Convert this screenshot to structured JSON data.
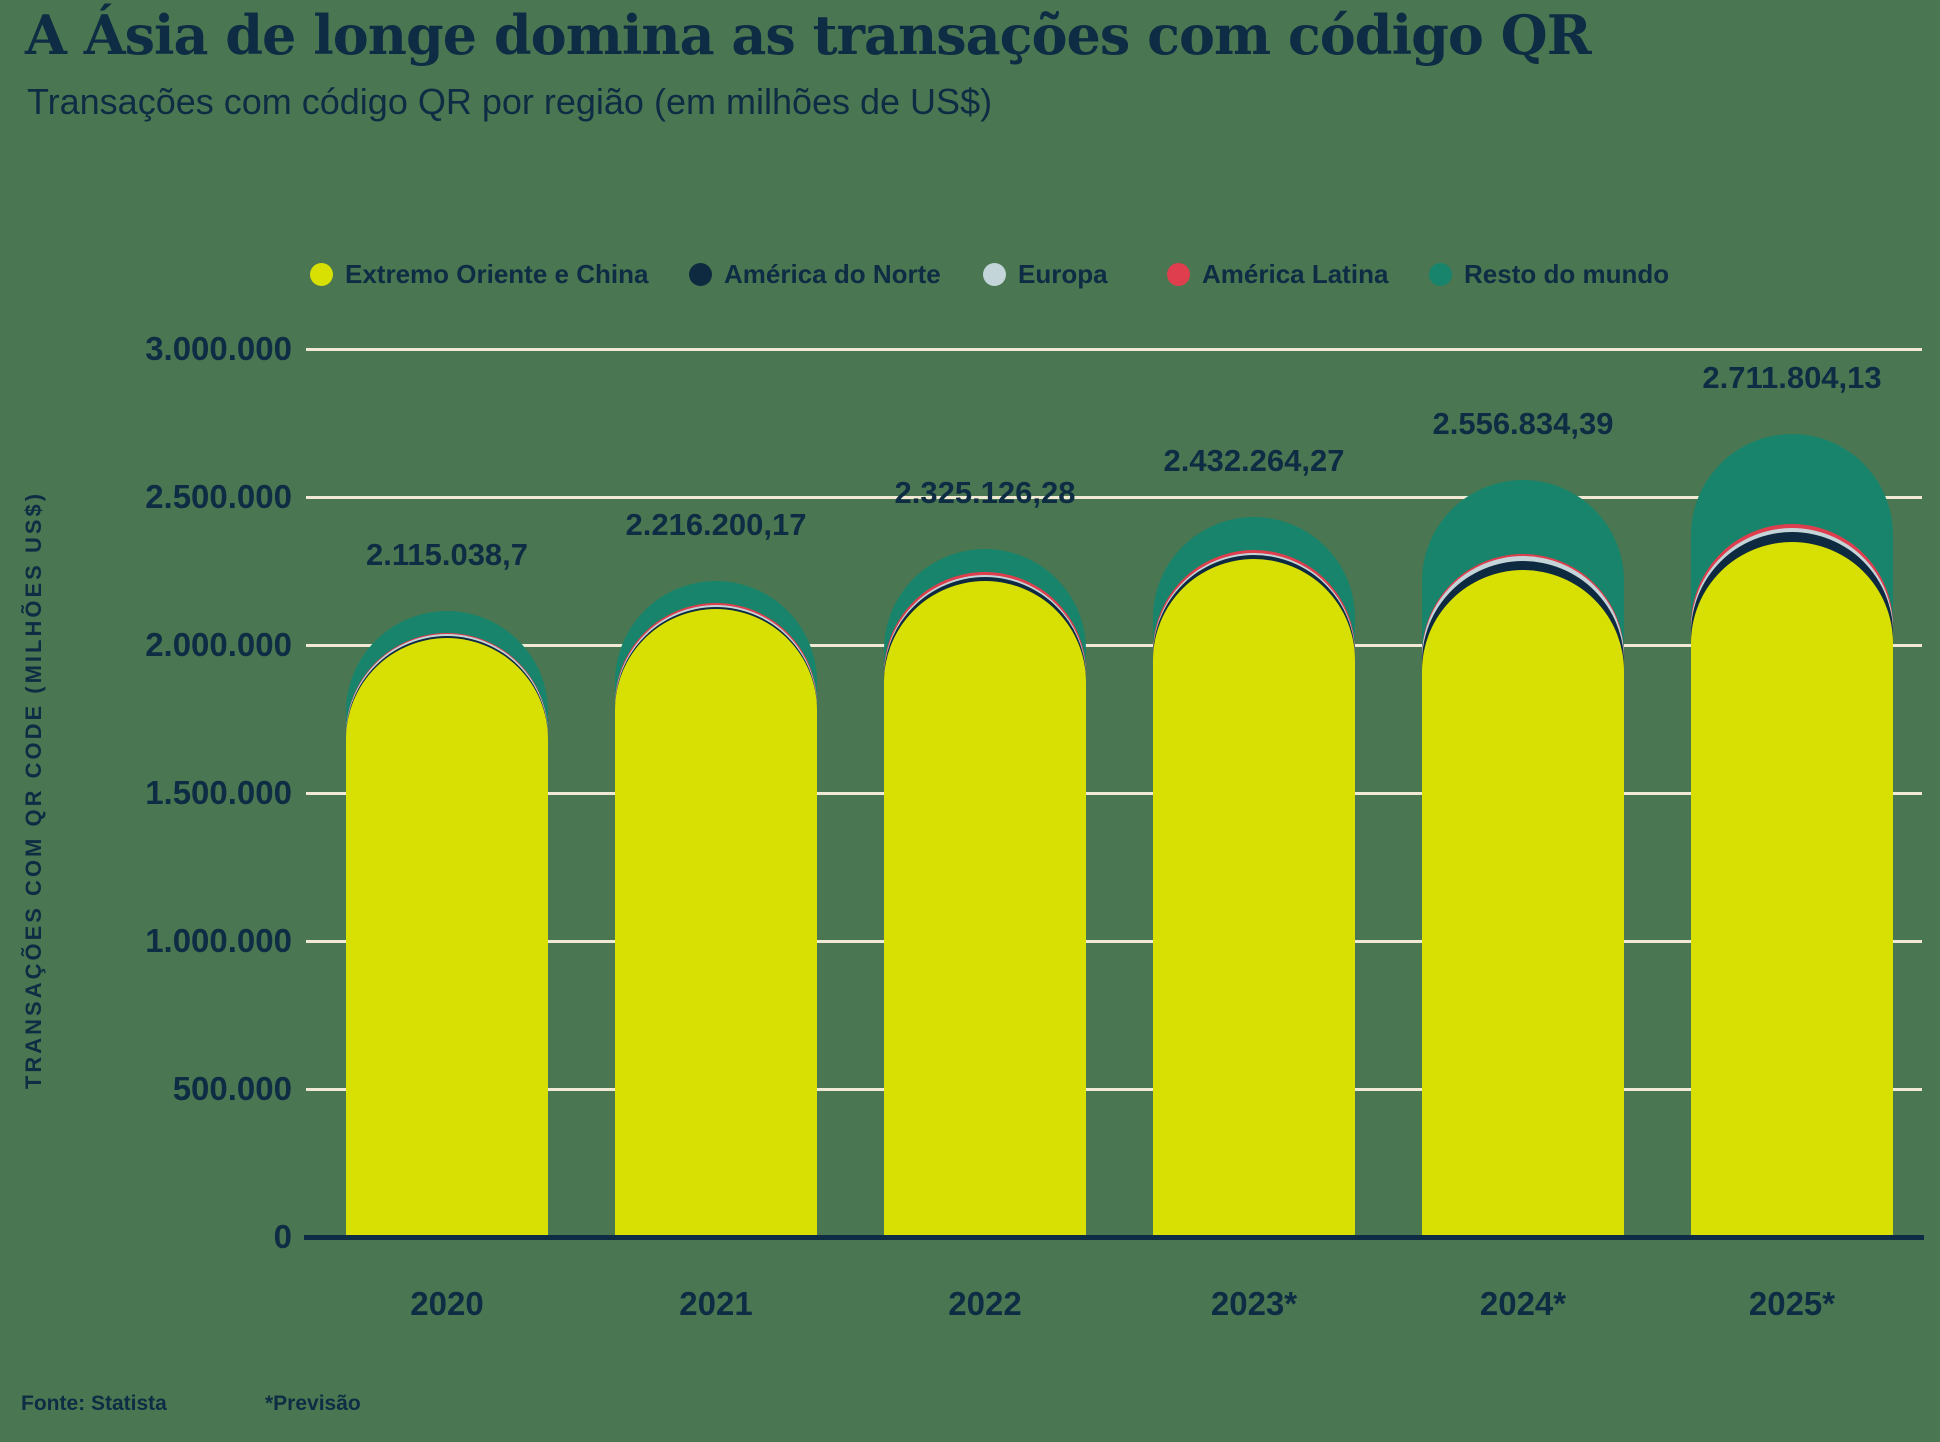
{
  "header": {
    "title": "A Ásia de longe domina as transações com código QR",
    "subtitle": "Transações com código QR por região (em milhões de US$)"
  },
  "colors": {
    "background": "#4A7751",
    "text": "#0E2C44",
    "gridline": "#F0EAD5",
    "axis": "#0E2C44",
    "far_east_china": "#D8E003",
    "north_america": "#0E2A40",
    "europe": "#C3D5D8",
    "latin_america": "#DE3E4E",
    "rest_of_world": "#17846B"
  },
  "legend": [
    {
      "label": "Extremo Oriente e China",
      "color": "#D8E003"
    },
    {
      "label": "América do Norte",
      "color": "#0E2A40"
    },
    {
      "label": "Europa",
      "color": "#C3D5D8"
    },
    {
      "label": "América Latina",
      "color": "#DE3E4E"
    },
    {
      "label": "Resto do mundo",
      "color": "#17846B"
    }
  ],
  "y_axis": {
    "title": "TRANSAÇÕES COM QR CODE (MILHÕES US$)",
    "ticks": [
      {
        "label": "3.000.000",
        "value": 3000000
      },
      {
        "label": "2.500.000",
        "value": 2500000
      },
      {
        "label": "2.000.000",
        "value": 2000000
      },
      {
        "label": "1.500.000",
        "value": 1500000
      },
      {
        "label": "1.000.000",
        "value": 1000000
      },
      {
        "label": "500.000",
        "value": 500000
      },
      {
        "label": "0",
        "value": 0
      }
    ]
  },
  "footer": {
    "source": "Fonte: Statista",
    "note": "*Previsão"
  },
  "chart_data": {
    "type": "bar",
    "stacked": true,
    "rounded_tops": true,
    "title": "A Ásia de longe domina as transações com código QR",
    "subtitle": "Transações com código QR por região (em milhões de US$)",
    "xlabel": "",
    "ylabel": "TRANSAÇÕES COM QR CODE (MILHÕES US$)",
    "ylim": [
      0,
      3000000
    ],
    "ytick_interval": 500000,
    "grid": true,
    "legend_position": "top",
    "categories": [
      "2020",
      "2021",
      "2022",
      "2023*",
      "2024*",
      "2025*"
    ],
    "totals": [
      2115038.7,
      2216200.17,
      2325126.28,
      2432264.27,
      2556834.39,
      2711804.13
    ],
    "total_labels": [
      "2.115.038,7",
      "2.216.200,17",
      "2.325.126,28",
      "2.432.264,27",
      "2.556.834,39",
      "2.711.804,13"
    ],
    "series": [
      {
        "name": "Extremo Oriente e China",
        "color": "#D8E003",
        "values": [
          2024000,
          2120000,
          2215000,
          2290000,
          2253000,
          2347000
        ]
      },
      {
        "name": "América do Norte",
        "color": "#0E2A40",
        "values": [
          8000,
          10000,
          15000,
          14000,
          30000,
          34000
        ]
      },
      {
        "name": "Europa",
        "color": "#C3D5D8",
        "values": [
          5000,
          6000,
          8000,
          8000,
          17000,
          13000
        ]
      },
      {
        "name": "América Latina",
        "color": "#DE3E4E",
        "values": [
          5000,
          6000,
          8000,
          9000,
          6000,
          14000
        ]
      },
      {
        "name": "Resto do mundo",
        "color": "#17846B",
        "values": [
          73038.7,
          74200.17,
          79126.28,
          111264.27,
          250834.39,
          303804.13
        ]
      }
    ],
    "series_values_note": "Only stack totals are labeled on the chart; per-region values estimated from segment geometry against gridlines."
  }
}
